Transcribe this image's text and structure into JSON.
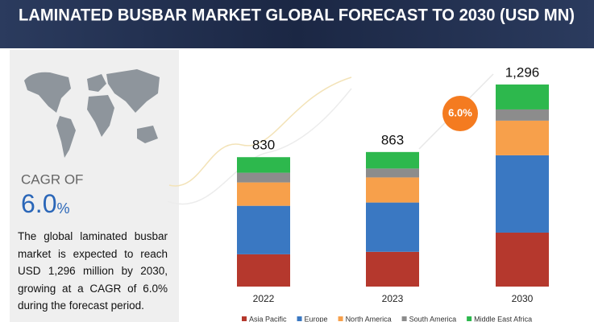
{
  "chart_data": {
    "type": "stacked_bar",
    "title": "LAMINATED BUSBAR MARKET GLOBAL FORECAST TO 2030 (USD MN)",
    "categories": [
      "2022",
      "2023",
      "2030"
    ],
    "series": [
      {
        "name": "Asia Pacific",
        "color": "#b5382d",
        "values": [
          207,
          223,
          346
        ]
      },
      {
        "name": "Europe",
        "color": "#3a78c2",
        "values": [
          311,
          316,
          496
        ]
      },
      {
        "name": "North America",
        "color": "#f7a04b",
        "values": [
          150,
          161,
          222
        ]
      },
      {
        "name": "South America",
        "color": "#8c8c8c",
        "values": [
          62,
          57,
          72
        ]
      },
      {
        "name": "Middle East Africa",
        "color": "#2db84d",
        "values": [
          100,
          106,
          160
        ]
      }
    ],
    "totals": [
      830,
      863,
      1296
    ],
    "total_labels": [
      "830",
      "863",
      "1,296"
    ],
    "growth_bubble": "6.0%",
    "cagr": {
      "label": "CAGR OF",
      "value": "6.0",
      "unit": "%"
    },
    "description": "The global laminated busbar market is expected to reach USD 1,296 million by 2030, growing at a CAGR of 6.0% during the forecast period."
  }
}
